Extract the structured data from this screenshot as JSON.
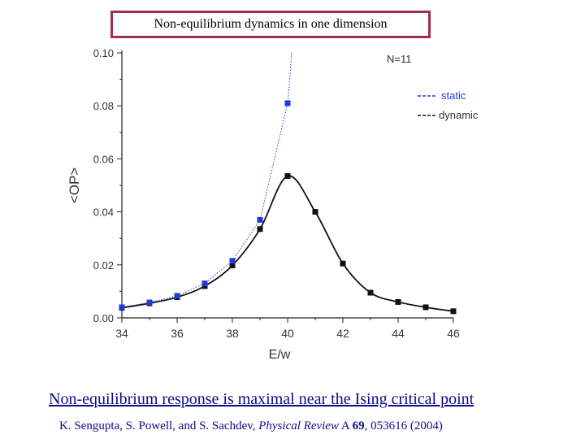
{
  "slide": {
    "title": "Non-equilibrium dynamics in one dimension",
    "caption": "Non-equilibrium response is maximal near the Ising critical point",
    "citation": {
      "authors": "K. Sengupta, S. Powell, and S. Sachdev, ",
      "journal": "Physical Review",
      "series": " A ",
      "volume": "69",
      "rest": ", 053616 (2004)"
    }
  },
  "chart_data": {
    "type": "scatter",
    "title": "",
    "xlabel": "E/w",
    "ylabel": "<OP>",
    "xlim": [
      34,
      46
    ],
    "ylim": [
      0,
      0.1
    ],
    "xticks": [
      34,
      36,
      38,
      40,
      42,
      44,
      46
    ],
    "yticks": [
      0.0,
      0.02,
      0.04,
      0.06,
      0.08,
      0.1
    ],
    "xtick_labels": [
      "34",
      "36",
      "38",
      "40",
      "42",
      "44",
      "46"
    ],
    "ytick_labels": [
      "0.00",
      "0.02",
      "0.04",
      "0.06",
      "0.08",
      "0.10"
    ],
    "annotation": "N=11",
    "legend_position": "top-right",
    "series": [
      {
        "name": "static",
        "color": "#1f3bd6",
        "line_style": "dotted",
        "points": [
          {
            "x": 34,
            "y": 0.004
          },
          {
            "x": 35,
            "y": 0.0058
          },
          {
            "x": 36,
            "y": 0.0083
          },
          {
            "x": 37,
            "y": 0.013
          },
          {
            "x": 38,
            "y": 0.0215
          },
          {
            "x": 39,
            "y": 0.037
          },
          {
            "x": 40,
            "y": 0.081
          }
        ]
      },
      {
        "name": "dynamic",
        "color": "#111111",
        "line_style": "solid",
        "points": [
          {
            "x": 34,
            "y": 0.0038
          },
          {
            "x": 35,
            "y": 0.0055
          },
          {
            "x": 36,
            "y": 0.0078
          },
          {
            "x": 37,
            "y": 0.012
          },
          {
            "x": 38,
            "y": 0.0198
          },
          {
            "x": 39,
            "y": 0.0335
          },
          {
            "x": 40,
            "y": 0.0535
          },
          {
            "x": 41,
            "y": 0.04
          },
          {
            "x": 42,
            "y": 0.0205
          },
          {
            "x": 43,
            "y": 0.0095
          },
          {
            "x": 44,
            "y": 0.006
          },
          {
            "x": 45,
            "y": 0.004
          },
          {
            "x": 46,
            "y": 0.0025
          }
        ]
      }
    ]
  }
}
